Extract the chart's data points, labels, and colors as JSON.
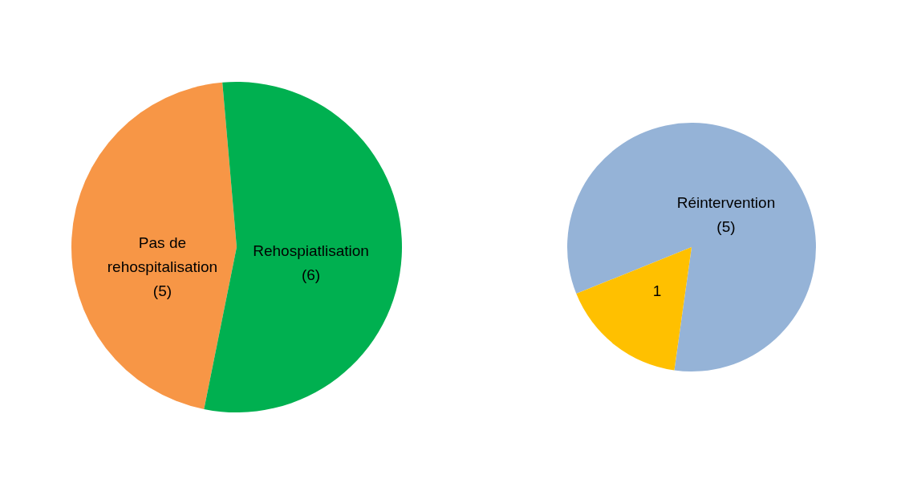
{
  "chart_data": [
    {
      "type": "pie",
      "categories": [
        "Pas de rehospitalisation",
        "Rehospiatlisation"
      ],
      "values": [
        5,
        6
      ],
      "colors": [
        "#f79646",
        "#00b050"
      ],
      "value_labels": [
        "(5)",
        "(6)"
      ]
    },
    {
      "type": "pie",
      "categories": [
        "Réintervention",
        null
      ],
      "values": [
        5,
        1
      ],
      "colors": [
        "#95b3d7",
        "#ffc000"
      ],
      "value_labels": [
        "(5)",
        "1"
      ]
    }
  ]
}
